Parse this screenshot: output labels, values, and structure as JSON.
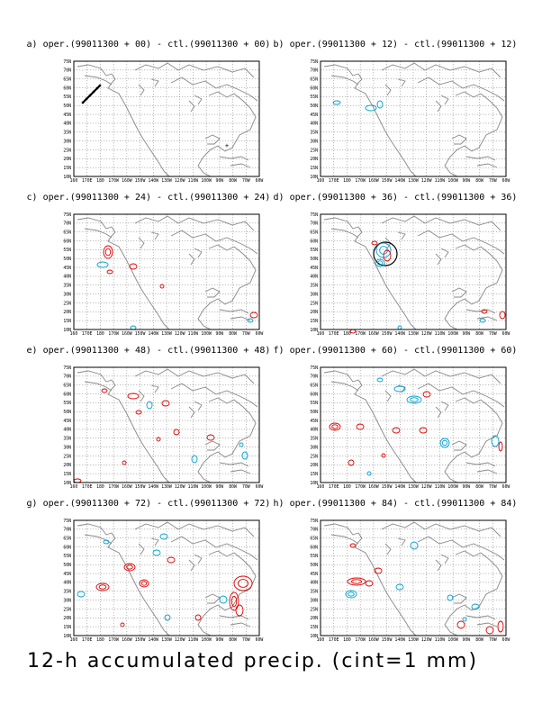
{
  "figure": {
    "caption": "12-h accumulated precip. (cint=1 mm)",
    "lat_labels": [
      "75N",
      "70N",
      "65N",
      "60N",
      "55N",
      "50N",
      "45N",
      "40N",
      "35N",
      "30N",
      "25N",
      "20N",
      "15N",
      "10N"
    ],
    "lon_labels": [
      "160",
      "170E",
      "180",
      "170W",
      "160W",
      "150W",
      "140W",
      "130W",
      "120W",
      "110W",
      "100W",
      "90W",
      "80W",
      "70W",
      "60W"
    ]
  },
  "colors": {
    "coast": "#888888",
    "positive": "#dd0000",
    "negative": "#00a0d0",
    "grid": "#777777",
    "frame": "#000000"
  },
  "panels": [
    {
      "id": "a",
      "title": "a) oper.(99011300 + 00) - ctl.(99011300 + 00)"
    },
    {
      "id": "b",
      "title": "b) oper.(99011300 + 12) - ctl.(99011300 + 12)"
    },
    {
      "id": "c",
      "title": "c) oper.(99011300 + 24) - ctl.(99011300 + 24)"
    },
    {
      "id": "d",
      "title": "d) oper.(99011300 + 36) - ctl.(99011300 + 36)"
    },
    {
      "id": "e",
      "title": "e) oper.(99011300 + 48) - ctl.(99011300 + 48)"
    },
    {
      "id": "f",
      "title": "f) oper.(99011300 + 60) - ctl.(99011300 + 60)"
    },
    {
      "id": "g",
      "title": "g) oper.(99011300 + 72) - ctl.(99011300 + 72)"
    },
    {
      "id": "h",
      "title": "h) oper.(99011300 + 84) - ctl.(99011300 + 84)"
    }
  ]
}
